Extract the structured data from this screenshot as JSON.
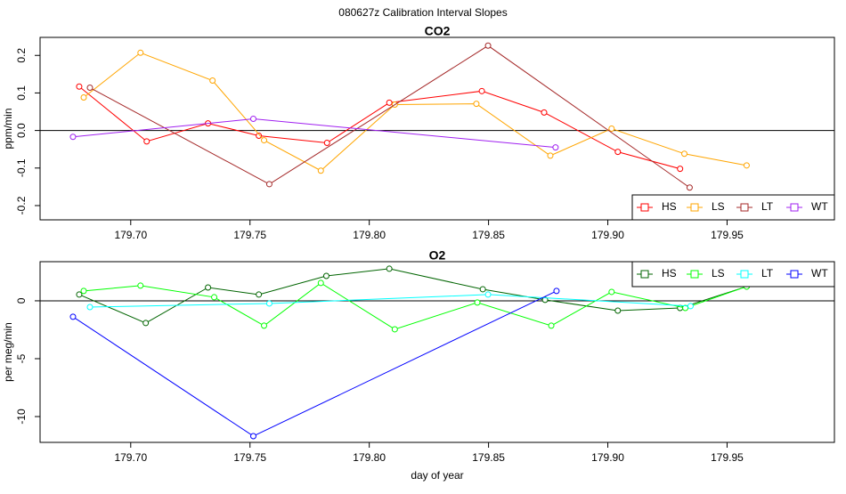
{
  "title": "080627z   Calibration Interval Slopes",
  "chart_data": [
    {
      "type": "line",
      "title": "CO2",
      "y_label": "ppm/min",
      "xlim": [
        179.662,
        179.995
      ],
      "xticks": [
        {
          "value": 179.7,
          "label": "179.70"
        },
        179.75,
        {
          "value": 179.8,
          "label": "179.80"
        },
        179.85,
        {
          "value": 179.9,
          "label": "179.90"
        },
        179.95
      ],
      "ylim": [
        -0.238,
        0.248
      ],
      "yticks": [
        -0.2,
        -0.1,
        {
          "value": 0,
          "label": "0.0"
        },
        0.1,
        0.2
      ],
      "zero_line": true,
      "legend": "lower right",
      "series": [
        {
          "name": "HS",
          "color": "#ff0000",
          "x": [
            179.6784,
            179.7067,
            179.7324,
            179.7537,
            179.7823,
            179.8084,
            179.8472,
            179.8733,
            179.9042,
            179.9303
          ],
          "values": [
            0.117,
            -0.029,
            0.019,
            -0.014,
            -0.033,
            0.074,
            0.105,
            0.048,
            -0.057,
            -0.102
          ]
        },
        {
          "name": "LS",
          "color": "#ffa500",
          "x": [
            179.6803,
            179.7041,
            179.7343,
            179.7559,
            179.7797,
            179.8107,
            179.8449,
            179.8759,
            179.9016,
            179.9321,
            179.9582
          ],
          "values": [
            0.088,
            0.207,
            0.133,
            -0.026,
            -0.107,
            0.069,
            0.071,
            -0.067,
            0.005,
            -0.062,
            -0.093
          ]
        },
        {
          "name": "LT",
          "color": "#a52a2a",
          "x": [
            179.6829,
            179.7581,
            179.8498,
            179.9343
          ],
          "values": [
            0.114,
            -0.143,
            0.226,
            -0.152
          ]
        },
        {
          "name": "WT",
          "color": "#a020f0",
          "x": [
            179.6758,
            179.7514,
            179.8781
          ],
          "values": [
            -0.017,
            0.031,
            -0.045
          ]
        }
      ]
    },
    {
      "type": "line",
      "title": "O2",
      "y_label": "per meg/min",
      "x_label": "day of year",
      "xlim": [
        179.662,
        179.995
      ],
      "xticks": [
        {
          "value": 179.7,
          "label": "179.70"
        },
        179.75,
        {
          "value": 179.8,
          "label": "179.80"
        },
        179.85,
        {
          "value": 179.9,
          "label": "179.90"
        },
        179.95
      ],
      "ylim": [
        -12.23,
        3.38
      ],
      "yticks": [
        -10,
        -5,
        0
      ],
      "zero_line": true,
      "legend": "upper right",
      "series": [
        {
          "name": "HS",
          "color": "#006400",
          "x": [
            179.6784,
            179.7063,
            179.7324,
            179.7537,
            179.782,
            179.8084,
            179.8476,
            179.8737,
            179.9042,
            179.9303,
            179.9582
          ],
          "values": [
            0.54,
            -1.92,
            1.15,
            0.54,
            2.15,
            2.77,
            1.0,
            0.08,
            -0.85,
            -0.62,
            1.23
          ]
        },
        {
          "name": "LS",
          "color": "#00ff00",
          "x": [
            179.6803,
            179.7041,
            179.735,
            179.7559,
            179.7797,
            179.8107,
            179.8453,
            179.8763,
            179.9016,
            179.9325,
            179.9582
          ],
          "values": [
            0.85,
            1.31,
            0.31,
            -2.15,
            1.54,
            -2.46,
            -0.15,
            -2.15,
            0.77,
            -0.62,
            1.23
          ]
        },
        {
          "name": "LT",
          "color": "#00ffff",
          "x": [
            179.6829,
            179.7581,
            179.8498,
            179.9347
          ],
          "values": [
            -0.54,
            -0.23,
            0.54,
            -0.46
          ]
        },
        {
          "name": "WT",
          "color": "#0000ff",
          "x": [
            179.6758,
            179.7514,
            179.8785
          ],
          "values": [
            -1.38,
            -11.69,
            0.85
          ]
        }
      ]
    }
  ]
}
